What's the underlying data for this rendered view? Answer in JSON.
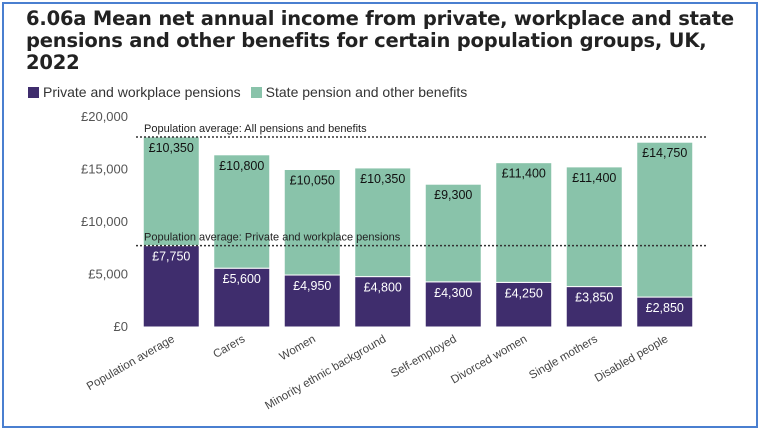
{
  "chart_data": {
    "type": "bar",
    "stacked": true,
    "title": "6.06a Mean net annual income from private, workplace and state pensions and other benefits for certain population groups, UK, 2022",
    "categories": [
      "Population average",
      "Carers",
      "Women",
      "Minority ethnic background",
      "Self-employed",
      "Divorced women",
      "Single mothers",
      "Disabled people"
    ],
    "series": [
      {
        "name": "Private and workplace pensions",
        "color": "#3f2d6d",
        "values": [
          7750,
          5600,
          4950,
          4800,
          4300,
          4250,
          3850,
          2850
        ],
        "labels": [
          "£7,750",
          "£5,600",
          "£4,950",
          "£4,800",
          "£4,300",
          "£4,250",
          "£3,850",
          "£2,850"
        ]
      },
      {
        "name": "State pension and other benefits",
        "color": "#89c3aa",
        "values": [
          10350,
          10800,
          10050,
          10350,
          9300,
          11400,
          11400,
          14750
        ],
        "labels": [
          "£10,350",
          "£10,800",
          "£10,050",
          "£10,350",
          "£9,300",
          "£11,400",
          "£11,400",
          "£14,750"
        ]
      }
    ],
    "ylim": [
      0,
      20000
    ],
    "yticks": [
      0,
      5000,
      10000,
      15000,
      20000
    ],
    "ytick_labels": [
      "£0",
      "£5,000",
      "£10,000",
      "£15,000",
      "£20,000"
    ],
    "reference_lines": [
      {
        "label": "Population average: All pensions and benefits",
        "value": 18100,
        "style": "dotted"
      },
      {
        "label": "Population average: Private and workplace pensions",
        "value": 7750,
        "style": "dotted"
      }
    ],
    "legend_position": "top-left",
    "grid": false
  }
}
